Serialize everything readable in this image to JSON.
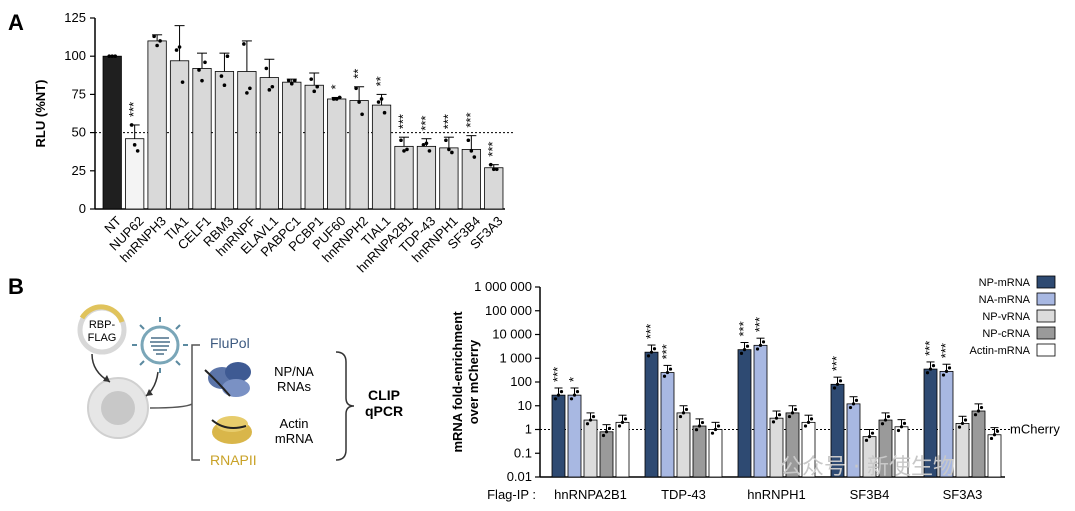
{
  "panel_a_label": "A",
  "panel_b_label": "B",
  "watermark": "公众号 · 新使生物",
  "chart_data": [
    {
      "type": "bar",
      "ylabel": "RLU (%NT)",
      "xlabel": "",
      "ylim": [
        0,
        125
      ],
      "yticks": [
        0,
        25,
        50,
        75,
        100,
        125
      ],
      "reference_line": 50,
      "categories": [
        "NT",
        "NUP62",
        "hnRNPH3",
        "TIA1",
        "CELF1",
        "RBM3",
        "hnRNPF",
        "ELAVL1",
        "PABPC1",
        "PCBP1",
        "PUF60",
        "hnRNPH2",
        "TIAL1",
        "hnRNPA2B1",
        "TDP-43",
        "hnRNPH1",
        "SF3B4",
        "SF3A3"
      ],
      "values": [
        100,
        46,
        110,
        97,
        92,
        90,
        90,
        86,
        83,
        81,
        72,
        71,
        68,
        41,
        41,
        40,
        39,
        27
      ],
      "errors": [
        0,
        9,
        4,
        23,
        10,
        12,
        20,
        12,
        2,
        8,
        1,
        9,
        7,
        6,
        5,
        7,
        9,
        2
      ],
      "points": [
        [
          100,
          100,
          100
        ],
        [
          55,
          42,
          38
        ],
        [
          113,
          107,
          110
        ],
        [
          104,
          106,
          83
        ],
        [
          91,
          84,
          96
        ],
        [
          87,
          81,
          100
        ],
        [
          108,
          76,
          79
        ],
        [
          92,
          78,
          80
        ],
        [
          84,
          82,
          84
        ],
        [
          85,
          77,
          80
        ],
        [
          72,
          72,
          73
        ],
        [
          79,
          70,
          62
        ],
        [
          70,
          72,
          63
        ],
        [
          45,
          38,
          39
        ],
        [
          42,
          43,
          38
        ],
        [
          45,
          39,
          37
        ],
        [
          45,
          38,
          34
        ],
        [
          29,
          26,
          26
        ]
      ],
      "significance": [
        "",
        "***",
        "",
        "",
        "",
        "",
        "",
        "",
        "",
        "",
        "*",
        "**",
        "**",
        "***",
        "***",
        "***",
        "***",
        "***"
      ],
      "colors": {
        "NT": "#1f1f1f",
        "NUP62": "#f4f4f4",
        "others": "#d9d9d9"
      }
    },
    {
      "type": "bar",
      "ylabel": "mRNA fold-enrichment over mCherry",
      "xlabel_prefix": "Flag-IP :",
      "log_scale": true,
      "ylim": [
        0.01,
        1000000
      ],
      "ytick_labels": [
        "0.01",
        "0.1",
        "1",
        "10",
        "100",
        "1 000",
        "10 000",
        "100 000",
        "1 000 000"
      ],
      "reference_line": 1,
      "reference_label": "mCherry",
      "categories": [
        "hnRNPA2B1",
        "TDP-43",
        "hnRNPH1",
        "SF3B4",
        "SF3A3"
      ],
      "series": [
        {
          "name": "NP-mRNA",
          "color": "#2e4a72",
          "values": [
            28,
            1800,
            2300,
            80,
            350
          ],
          "significance": [
            "***",
            "***",
            "***",
            "***",
            "***"
          ]
        },
        {
          "name": "NA-mRNA",
          "color": "#a8b8e2",
          "values": [
            28,
            250,
            3500,
            12,
            280
          ],
          "significance": [
            "*",
            "***",
            "***",
            "",
            "***"
          ]
        },
        {
          "name": "NP-vRNA",
          "color": "#dcdcdc",
          "values": [
            2.5,
            5,
            3,
            0.5,
            1.8
          ],
          "significance": [
            "",
            "",
            "",
            "",
            ""
          ]
        },
        {
          "name": "NP-cRNA",
          "color": "#9a9a9a",
          "values": [
            0.8,
            1.4,
            5,
            2.5,
            6
          ],
          "significance": [
            "",
            "",
            "",
            "",
            ""
          ]
        },
        {
          "name": "Actin-mRNA",
          "color": "#ffffff",
          "values": [
            2,
            1,
            2,
            1.3,
            0.6
          ],
          "significance": [
            "",
            "",
            "",
            "",
            ""
          ]
        }
      ],
      "legend_position": "top-right"
    }
  ],
  "diagram": {
    "rbp_flag": "RBP-\nFLAG",
    "flupol": "FluPol",
    "rnapii": "RNAPII",
    "np_na_rnas": "NP/NA\nRNAs",
    "actin_mrna": "Actin\nmRNA",
    "clip_qpcr": "CLIP\nqPCR"
  }
}
